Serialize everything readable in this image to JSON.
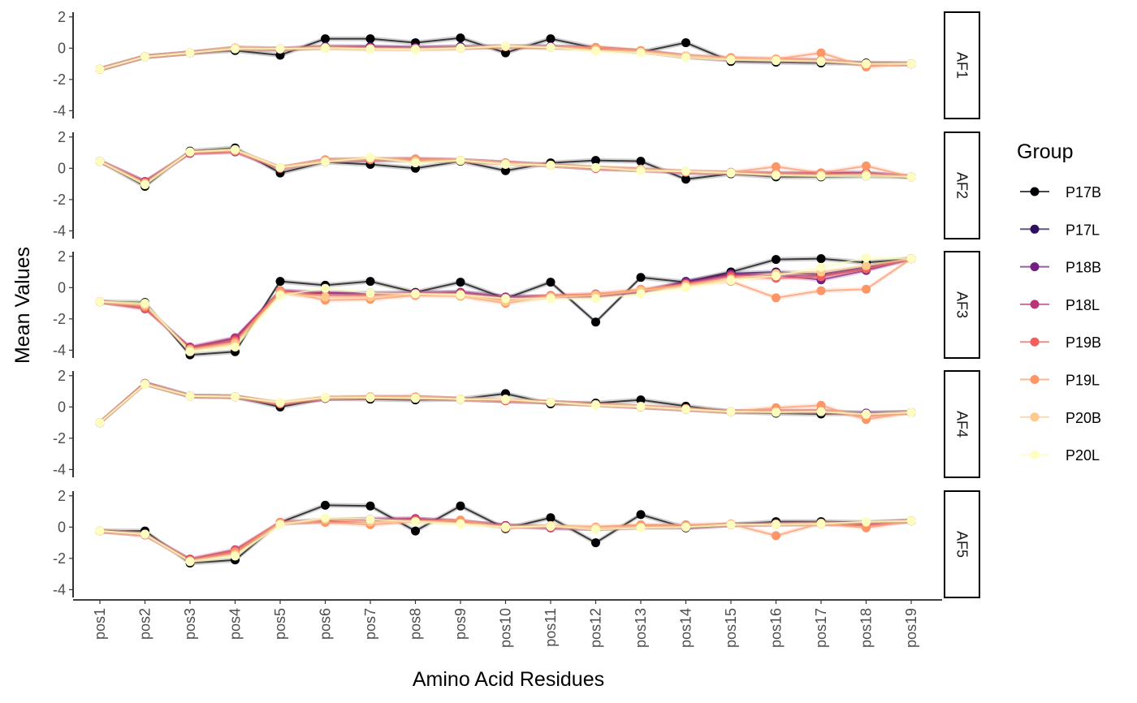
{
  "chart_data": {
    "type": "line",
    "xlabel": "Amino Acid Residues",
    "ylabel": "Mean Values",
    "ylim": [
      -4.5,
      2.3
    ],
    "yticks": [
      2,
      0,
      -2,
      -4
    ],
    "ytick_labels": [
      "2",
      "0",
      "-2",
      "-4"
    ],
    "grid": false,
    "legend_title": "Group",
    "legend_position": "right",
    "categories": [
      "pos1",
      "pos2",
      "pos3",
      "pos4",
      "pos5",
      "pos6",
      "pos7",
      "pos8",
      "pos9",
      "pos10",
      "pos11",
      "pos12",
      "pos13",
      "pos14",
      "pos15",
      "pos16",
      "pos17",
      "pos18",
      "pos19"
    ],
    "series": [
      {
        "name": "P17B",
        "color": "#000004"
      },
      {
        "name": "P17L",
        "color": "#2D1160"
      },
      {
        "name": "P18B",
        "color": "#721F81"
      },
      {
        "name": "P18L",
        "color": "#B63679"
      },
      {
        "name": "P19B",
        "color": "#F1605D"
      },
      {
        "name": "P19L",
        "color": "#FD9567"
      },
      {
        "name": "P20B",
        "color": "#FEC98D"
      },
      {
        "name": "P20L",
        "color": "#FCFDBF"
      }
    ],
    "panels": [
      {
        "label": "AF1",
        "values": [
          [
            -1.35,
            -0.55,
            -0.3,
            -0.15,
            -0.45,
            0.6,
            0.6,
            0.35,
            0.65,
            -0.3,
            0.6,
            0.0,
            -0.25,
            0.35,
            -0.85,
            -0.9,
            -0.95,
            -0.95,
            -1.0
          ],
          [
            -1.35,
            -0.55,
            -0.3,
            -0.05,
            -0.1,
            0.1,
            0.1,
            0.05,
            0.1,
            0.1,
            0.1,
            -0.05,
            -0.2,
            -0.55,
            -0.75,
            -0.8,
            -0.85,
            -1.0,
            -1.0
          ],
          [
            -1.35,
            -0.55,
            -0.3,
            0.0,
            -0.05,
            0.05,
            0.05,
            0.0,
            0.05,
            0.1,
            0.1,
            -0.05,
            -0.2,
            -0.55,
            -0.75,
            -0.8,
            -0.8,
            -1.0,
            -1.0
          ],
          [
            -1.35,
            -0.55,
            -0.3,
            0.0,
            -0.05,
            0.05,
            0.0,
            0.0,
            0.05,
            0.1,
            0.05,
            0.0,
            -0.2,
            -0.5,
            -0.7,
            -0.75,
            -0.8,
            -1.0,
            -1.0
          ],
          [
            -1.35,
            -0.55,
            -0.3,
            0.0,
            -0.05,
            0.05,
            0.0,
            -0.05,
            0.0,
            0.1,
            0.05,
            0.05,
            -0.2,
            -0.5,
            -0.65,
            -0.7,
            -0.75,
            -1.05,
            -1.0
          ],
          [
            -1.35,
            -0.55,
            -0.3,
            0.0,
            -0.05,
            0.05,
            -0.05,
            -0.05,
            0.0,
            0.1,
            0.05,
            0.05,
            -0.15,
            -0.5,
            -0.6,
            -0.7,
            -0.3,
            -1.2,
            -1.0
          ],
          [
            -1.35,
            -0.55,
            -0.3,
            0.0,
            -0.05,
            0.0,
            -0.05,
            -0.05,
            0.0,
            0.1,
            0.05,
            -0.1,
            -0.25,
            -0.5,
            -0.7,
            -0.75,
            -0.8,
            -1.0,
            -1.0
          ],
          [
            -1.35,
            -0.55,
            -0.3,
            -0.05,
            -0.05,
            0.0,
            -0.05,
            -0.1,
            0.0,
            0.15,
            0.05,
            -0.2,
            -0.3,
            -0.6,
            -0.75,
            -0.8,
            -0.85,
            -1.0,
            -1.0
          ]
        ]
      },
      {
        "label": "AF2",
        "values": [
          [
            0.45,
            -1.15,
            1.1,
            1.3,
            -0.3,
            0.4,
            0.25,
            0.0,
            0.45,
            -0.15,
            0.35,
            0.5,
            0.45,
            -0.7,
            -0.35,
            -0.55,
            -0.55,
            -0.5,
            -0.55
          ],
          [
            0.45,
            -0.9,
            1.0,
            1.15,
            0.0,
            0.5,
            0.55,
            0.5,
            0.5,
            0.35,
            0.2,
            0.0,
            -0.1,
            -0.25,
            -0.3,
            -0.35,
            -0.4,
            -0.35,
            -0.55
          ],
          [
            0.45,
            -0.85,
            1.0,
            1.1,
            0.0,
            0.5,
            0.55,
            0.55,
            0.5,
            0.35,
            0.2,
            0.0,
            -0.1,
            -0.25,
            -0.3,
            -0.4,
            -0.3,
            -0.3,
            -0.55
          ],
          [
            0.45,
            -0.85,
            0.95,
            1.05,
            0.0,
            0.5,
            0.55,
            0.6,
            0.5,
            0.35,
            0.2,
            0.0,
            -0.1,
            -0.25,
            -0.3,
            -0.35,
            -0.3,
            -0.3,
            -0.55
          ],
          [
            0.45,
            -0.9,
            1.0,
            1.1,
            0.0,
            0.5,
            0.55,
            0.55,
            0.5,
            0.35,
            0.2,
            0.0,
            -0.1,
            -0.25,
            -0.3,
            -0.3,
            -0.4,
            -0.35,
            -0.55
          ],
          [
            0.45,
            -0.95,
            1.05,
            1.15,
            0.05,
            0.55,
            0.6,
            0.6,
            0.5,
            0.35,
            0.2,
            0.05,
            -0.05,
            -0.2,
            -0.25,
            0.1,
            -0.3,
            0.15,
            -0.55
          ],
          [
            0.45,
            -1.0,
            1.05,
            1.15,
            0.05,
            0.45,
            0.65,
            0.45,
            0.5,
            0.3,
            0.2,
            0.05,
            -0.1,
            -0.2,
            -0.3,
            -0.4,
            -0.45,
            -0.4,
            -0.55
          ],
          [
            0.45,
            -1.05,
            1.05,
            1.2,
            0.05,
            0.4,
            0.7,
            0.35,
            0.5,
            0.25,
            0.2,
            0.05,
            -0.15,
            -0.2,
            -0.3,
            -0.45,
            -0.5,
            -0.5,
            -0.55
          ]
        ]
      },
      {
        "label": "AF3",
        "values": [
          [
            -0.9,
            -0.95,
            -4.3,
            -4.1,
            0.4,
            0.15,
            0.4,
            -0.3,
            0.35,
            -0.7,
            0.35,
            -2.2,
            0.65,
            0.35,
            1.0,
            1.8,
            1.85,
            1.6,
            1.85
          ],
          [
            -0.9,
            -1.2,
            -3.9,
            -3.4,
            -0.3,
            -0.35,
            -0.35,
            -0.35,
            -0.3,
            -0.6,
            -0.6,
            -0.55,
            -0.3,
            0.4,
            0.9,
            1.0,
            0.85,
            1.3,
            1.85
          ],
          [
            -0.9,
            -1.25,
            -3.85,
            -3.25,
            -0.2,
            -0.35,
            -0.4,
            -0.35,
            -0.3,
            -0.6,
            -0.6,
            -0.55,
            -0.25,
            0.35,
            0.85,
            0.8,
            0.5,
            1.1,
            1.85
          ],
          [
            -0.9,
            -1.35,
            -3.8,
            -3.2,
            -0.2,
            -0.35,
            -0.4,
            -0.35,
            -0.3,
            -0.6,
            -0.55,
            -0.55,
            -0.25,
            0.3,
            0.8,
            0.8,
            0.75,
            1.2,
            1.85
          ],
          [
            -0.9,
            -1.3,
            -3.9,
            -3.4,
            -0.3,
            -0.5,
            -0.5,
            -0.4,
            -0.4,
            -0.8,
            -0.5,
            -0.4,
            -0.2,
            0.2,
            0.7,
            0.6,
            0.7,
            1.2,
            1.85
          ],
          [
            -0.9,
            -1.2,
            -3.95,
            -3.5,
            -0.2,
            -0.8,
            -0.75,
            -0.5,
            -0.55,
            -1.0,
            -0.55,
            -0.45,
            -0.1,
            0.2,
            0.4,
            -0.65,
            -0.2,
            -0.1,
            1.85
          ],
          [
            -0.9,
            -1.1,
            -4.0,
            -3.6,
            -0.4,
            -0.6,
            -0.6,
            -0.4,
            -0.5,
            -0.9,
            -0.6,
            -0.5,
            -0.2,
            0.1,
            0.55,
            0.9,
            1.0,
            1.4,
            1.85
          ],
          [
            -0.9,
            -1.0,
            -4.1,
            -3.8,
            -0.5,
            -0.05,
            -0.35,
            -0.4,
            -0.45,
            -0.7,
            -0.7,
            -0.7,
            -0.4,
            0.0,
            0.45,
            0.75,
            1.3,
            1.9,
            1.85
          ]
        ]
      },
      {
        "label": "AF4",
        "values": [
          [
            -1.0,
            1.5,
            0.7,
            0.65,
            0.0,
            0.55,
            0.5,
            0.45,
            0.5,
            0.85,
            0.2,
            0.25,
            0.45,
            0.05,
            -0.3,
            -0.4,
            -0.45,
            -0.4,
            -0.35
          ],
          [
            -1.0,
            1.5,
            0.7,
            0.65,
            0.2,
            0.55,
            0.6,
            0.6,
            0.5,
            0.4,
            0.3,
            0.15,
            0.0,
            -0.15,
            -0.3,
            -0.3,
            -0.3,
            -0.4,
            -0.35
          ],
          [
            -1.0,
            1.5,
            0.7,
            0.65,
            0.2,
            0.55,
            0.6,
            0.6,
            0.5,
            0.4,
            0.3,
            0.15,
            0.0,
            -0.15,
            -0.3,
            -0.3,
            -0.3,
            -0.4,
            -0.35
          ],
          [
            -1.0,
            1.5,
            0.7,
            0.65,
            0.2,
            0.55,
            0.6,
            0.6,
            0.5,
            0.4,
            0.3,
            0.15,
            0.0,
            -0.15,
            -0.3,
            -0.3,
            -0.3,
            -0.5,
            -0.35
          ],
          [
            -1.0,
            1.5,
            0.7,
            0.65,
            0.2,
            0.55,
            0.6,
            0.6,
            0.5,
            0.4,
            0.3,
            0.15,
            0.0,
            -0.15,
            -0.3,
            -0.25,
            -0.2,
            -0.6,
            -0.35
          ],
          [
            -1.0,
            1.5,
            0.7,
            0.65,
            0.25,
            0.6,
            0.65,
            0.65,
            0.5,
            0.45,
            0.3,
            0.15,
            0.05,
            -0.1,
            -0.3,
            -0.05,
            0.1,
            -0.8,
            -0.35
          ],
          [
            -1.0,
            1.45,
            0.7,
            0.65,
            0.25,
            0.6,
            0.6,
            0.6,
            0.5,
            0.45,
            0.3,
            0.15,
            0.05,
            -0.15,
            -0.3,
            -0.3,
            -0.3,
            -0.5,
            -0.35
          ],
          [
            -1.0,
            1.45,
            0.7,
            0.65,
            0.3,
            0.6,
            0.6,
            0.55,
            0.5,
            0.5,
            0.3,
            0.1,
            0.0,
            -0.15,
            -0.3,
            -0.35,
            -0.3,
            -0.45,
            -0.35
          ]
        ]
      },
      {
        "label": "AF5",
        "values": [
          [
            -0.25,
            -0.25,
            -2.3,
            -2.1,
            0.3,
            1.4,
            1.35,
            -0.25,
            1.35,
            -0.1,
            0.6,
            -1.0,
            0.8,
            -0.05,
            0.15,
            0.35,
            0.35,
            0.3,
            0.4
          ],
          [
            -0.25,
            -0.45,
            -2.15,
            -1.6,
            0.25,
            0.4,
            0.45,
            0.5,
            0.35,
            0.1,
            0.0,
            -0.1,
            0.0,
            0.0,
            0.15,
            0.2,
            0.2,
            0.25,
            0.4
          ],
          [
            -0.25,
            -0.45,
            -2.1,
            -1.55,
            0.25,
            0.45,
            0.5,
            0.5,
            0.35,
            0.1,
            -0.05,
            -0.1,
            0.0,
            0.0,
            0.15,
            0.2,
            0.25,
            0.25,
            0.4
          ],
          [
            -0.25,
            -0.5,
            -2.05,
            -1.45,
            0.3,
            0.45,
            0.5,
            0.55,
            0.35,
            0.1,
            -0.05,
            -0.1,
            0.0,
            0.0,
            0.15,
            0.2,
            0.25,
            0.2,
            0.4
          ],
          [
            -0.25,
            -0.5,
            -2.1,
            -1.5,
            0.3,
            0.35,
            0.35,
            0.45,
            0.35,
            0.05,
            0.0,
            -0.05,
            0.05,
            0.05,
            0.15,
            0.15,
            0.2,
            0.1,
            0.4
          ],
          [
            -0.25,
            -0.5,
            -2.15,
            -1.6,
            0.3,
            0.3,
            0.15,
            0.35,
            0.45,
            -0.05,
            0.1,
            0.0,
            0.15,
            0.15,
            0.2,
            -0.55,
            0.25,
            -0.05,
            0.4
          ],
          [
            -0.25,
            -0.45,
            -2.2,
            -1.75,
            0.2,
            0.5,
            0.35,
            0.35,
            0.25,
            0.0,
            0.1,
            -0.05,
            0.0,
            0.0,
            0.15,
            0.2,
            0.25,
            0.3,
            0.4
          ],
          [
            -0.25,
            -0.45,
            -2.2,
            -1.85,
            0.15,
            0.6,
            0.5,
            0.35,
            0.2,
            0.0,
            0.05,
            -0.15,
            -0.05,
            0.0,
            0.15,
            0.15,
            0.2,
            0.35,
            0.4
          ]
        ]
      }
    ]
  }
}
